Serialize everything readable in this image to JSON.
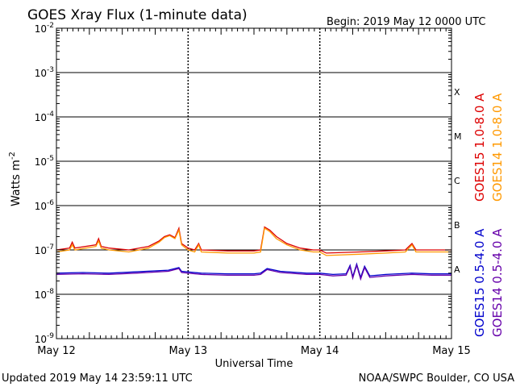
{
  "chart_data": {
    "type": "line",
    "title": "GOES Xray Flux (1-minute data)",
    "begin_label": "Begin:  2019 May 12 0000 UTC",
    "xlabel": "Universal Time",
    "ylabel_main": "Watts m",
    "ylabel_exp": "-2",
    "yscale": "log",
    "ylim": [
      1e-09,
      0.01
    ],
    "y_ticks": [
      {
        "base": "10",
        "exp": "-2",
        "value": 0.01
      },
      {
        "base": "10",
        "exp": "-3",
        "value": 0.001
      },
      {
        "base": "10",
        "exp": "-4",
        "value": 0.0001
      },
      {
        "base": "10",
        "exp": "-5",
        "value": 1e-05
      },
      {
        "base": "10",
        "exp": "-6",
        "value": 1e-06
      },
      {
        "base": "10",
        "exp": "-7",
        "value": 1e-07
      },
      {
        "base": "10",
        "exp": "-8",
        "value": 1e-08
      },
      {
        "base": "10",
        "exp": "-9",
        "value": 1e-09
      }
    ],
    "x_ticks": [
      {
        "label": "May 12",
        "value": 0
      },
      {
        "label": "May 13",
        "value": 1
      },
      {
        "label": "May 14",
        "value": 2
      },
      {
        "label": "May 15",
        "value": 3
      }
    ],
    "xlim": [
      0,
      3
    ],
    "flare_classes": [
      {
        "label": "X",
        "value": 0.0001
      },
      {
        "label": "M",
        "value": 1e-05
      },
      {
        "label": "C",
        "value": 1e-06
      },
      {
        "label": "B",
        "value": 1e-07
      },
      {
        "label": "A",
        "value": 1e-08
      }
    ],
    "grid": true,
    "series": [
      {
        "name": "GOES15 1.0-8.0 A",
        "color": "#dd0000",
        "x": [
          0,
          0.1,
          0.12,
          0.14,
          0.3,
          0.32,
          0.34,
          0.4,
          0.55,
          0.7,
          0.78,
          0.82,
          0.86,
          0.9,
          0.93,
          0.95,
          1.0,
          1.05,
          1.08,
          1.1,
          1.3,
          1.5,
          1.55,
          1.58,
          1.62,
          1.67,
          1.75,
          1.85,
          1.95,
          2.0,
          2.05,
          2.3,
          2.5,
          2.65,
          2.7,
          2.73,
          2.8,
          3.0
        ],
        "y": [
          1e-07,
          1.1e-07,
          1.5e-07,
          1.1e-07,
          1.3e-07,
          1.8e-07,
          1.2e-07,
          1.1e-07,
          1e-07,
          1.2e-07,
          1.6e-07,
          2e-07,
          2.2e-07,
          1.9e-07,
          3.1e-07,
          1.4e-07,
          1.1e-07,
          1e-07,
          1.4e-07,
          1e-07,
          9.5e-08,
          9.5e-08,
          1e-07,
          3.3e-07,
          2.8e-07,
          2e-07,
          1.4e-07,
          1.1e-07,
          1e-07,
          1e-07,
          8.5e-08,
          9e-08,
          9.5e-08,
          1e-07,
          1.4e-07,
          1e-07,
          1e-07,
          1e-07
        ]
      },
      {
        "name": "GOES14 1.0-8.0 A",
        "color": "#ff9900",
        "x": [
          0,
          0.1,
          0.12,
          0.14,
          0.3,
          0.32,
          0.34,
          0.4,
          0.55,
          0.7,
          0.78,
          0.82,
          0.86,
          0.9,
          0.93,
          0.95,
          1.0,
          1.05,
          1.08,
          1.1,
          1.3,
          1.5,
          1.55,
          1.58,
          1.62,
          1.67,
          1.75,
          1.85,
          1.95,
          2.0,
          2.05,
          2.3,
          2.5,
          2.65,
          2.7,
          2.73,
          2.8,
          3.0
        ],
        "y": [
          9e-08,
          1e-07,
          1.3e-07,
          1e-07,
          1.2e-07,
          1.6e-07,
          1.1e-07,
          1e-07,
          9e-08,
          1.1e-07,
          1.5e-07,
          1.9e-07,
          2.1e-07,
          1.8e-07,
          2.8e-07,
          1.3e-07,
          1e-07,
          9e-08,
          1.3e-07,
          9e-08,
          8.5e-08,
          8.5e-08,
          9e-08,
          3.1e-07,
          2.6e-07,
          1.8e-07,
          1.3e-07,
          1e-07,
          9e-08,
          9e-08,
          7.5e-08,
          8e-08,
          8.5e-08,
          9e-08,
          1.3e-07,
          9e-08,
          9e-08,
          9e-08
        ]
      },
      {
        "name": "GOES15 0.5-4.0 A",
        "color": "#0000cc",
        "x": [
          0,
          0.2,
          0.4,
          0.6,
          0.85,
          0.93,
          0.95,
          1.1,
          1.3,
          1.5,
          1.55,
          1.6,
          1.7,
          1.9,
          2.0,
          2.1,
          2.2,
          2.23,
          2.25,
          2.28,
          2.31,
          2.34,
          2.38,
          2.5,
          2.7,
          2.85,
          3.0
        ],
        "y": [
          3e-08,
          3.1e-08,
          3e-08,
          3.2e-08,
          3.5e-08,
          4e-08,
          3.3e-08,
          3e-08,
          2.9e-08,
          2.9e-08,
          3e-08,
          3.8e-08,
          3.3e-08,
          3e-08,
          3e-08,
          2.8e-08,
          2.9e-08,
          4.5e-08,
          2.5e-08,
          4.8e-08,
          2.4e-08,
          4.3e-08,
          2.6e-08,
          2.8e-08,
          3e-08,
          2.9e-08,
          2.9e-08
        ]
      },
      {
        "name": "GOES14 0.5-4.0 A",
        "color": "#6600aa",
        "x": [
          0,
          0.2,
          0.4,
          0.6,
          0.85,
          0.93,
          0.95,
          1.1,
          1.3,
          1.5,
          1.55,
          1.6,
          1.7,
          1.9,
          2.0,
          2.1,
          2.2,
          2.23,
          2.25,
          2.28,
          2.31,
          2.34,
          2.38,
          2.5,
          2.7,
          2.85,
          3.0
        ],
        "y": [
          2.8e-08,
          2.9e-08,
          2.8e-08,
          3e-08,
          3.3e-08,
          3.8e-08,
          3.1e-08,
          2.8e-08,
          2.7e-08,
          2.7e-08,
          2.8e-08,
          3.6e-08,
          3.1e-08,
          2.8e-08,
          2.8e-08,
          2.6e-08,
          2.7e-08,
          4.2e-08,
          2.3e-08,
          4.5e-08,
          2.2e-08,
          4e-08,
          2.4e-08,
          2.6e-08,
          2.8e-08,
          2.7e-08,
          2.7e-08
        ]
      }
    ]
  },
  "footer": {
    "updated": "Updated 2019 May 14 23:59:11 UTC",
    "credit": "NOAA/SWPC Boulder, CO USA"
  }
}
